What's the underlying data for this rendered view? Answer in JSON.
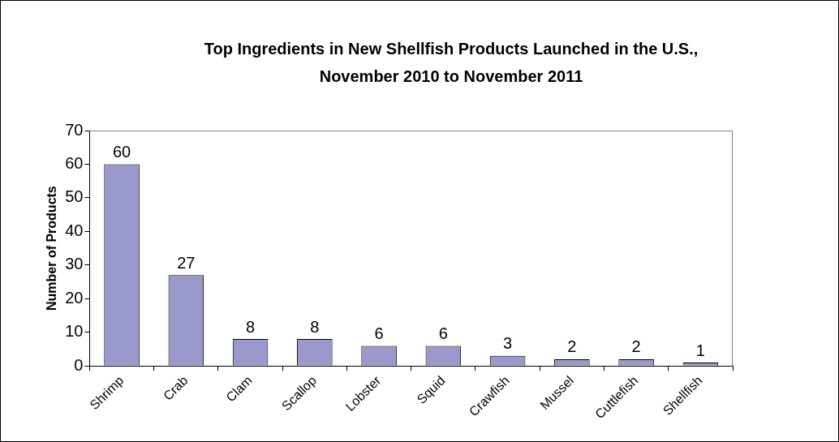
{
  "chart_data": {
    "type": "bar",
    "title": "Top Ingredients in New Shellfish Products Launched in the U.S., November 2010 to November 2011",
    "ylabel": "Number of Products",
    "categories": [
      "Shrimp",
      "Crab",
      "Clam",
      "Scallop",
      "Lobster",
      "Squid",
      "Crawfish",
      "Mussel",
      "Cuttlefish",
      "Shellfish"
    ],
    "values": [
      60,
      27,
      8,
      8,
      6,
      6,
      3,
      2,
      2,
      1
    ],
    "color": "#9999cc",
    "ylim": [
      0,
      70
    ],
    "yticks": [
      0,
      10,
      20,
      30,
      40,
      50,
      60,
      70
    ],
    "data_labels": true,
    "grid": false,
    "legend": false
  }
}
